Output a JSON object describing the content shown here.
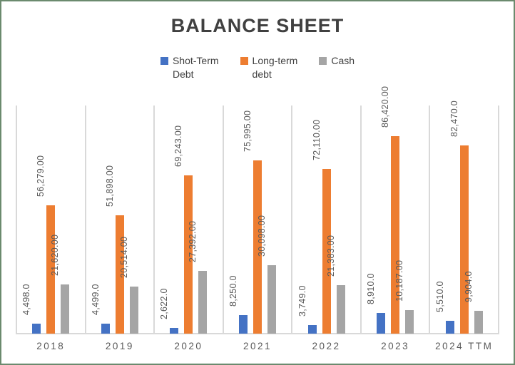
{
  "chart_data": {
    "type": "bar",
    "title": "BALANCE SHEET",
    "categories": [
      "2018",
      "2019",
      "2020",
      "2021",
      "2022",
      "2023",
      "2024 TTM"
    ],
    "series": [
      {
        "name": "Shot-Term Debt",
        "legend_lines": [
          "Shot-Term",
          "Debt"
        ],
        "color": "#4472C4",
        "values": [
          4498,
          4499,
          2622,
          8250,
          3749,
          8910,
          5510
        ],
        "data_labels": [
          "4,498.0",
          "4,499.0",
          "2,622.0",
          "8,250.0",
          "3,749.0",
          "8,910.0",
          "5,510.0"
        ]
      },
      {
        "name": "Long-term debt",
        "legend_lines": [
          "Long-term",
          "debt"
        ],
        "color": "#ED7D31",
        "values": [
          56279,
          51898,
          69243,
          75995,
          72110,
          86420,
          82470
        ],
        "data_labels": [
          "56,279.00",
          "51,898.00",
          "69,243.00",
          "75,995.00",
          "72,110.00",
          "86,420.00",
          "82,470.0"
        ]
      },
      {
        "name": "Cash",
        "legend_lines": [
          "Cash"
        ],
        "color": "#A5A5A5",
        "values": [
          21620,
          20514,
          27392,
          30098,
          21383,
          10187,
          9904
        ],
        "data_labels": [
          "21,620.00",
          "20,514.00",
          "27,392.00",
          "30,098.00",
          "21,383.00",
          "10,187.00",
          "9,904.0"
        ]
      }
    ],
    "ylim": [
      0,
      100000
    ],
    "xlabel": "",
    "ylabel": "",
    "y_axis_visible": false,
    "grid": "vertical-category-separators",
    "legend_position": "top",
    "data_label_rotation": 90
  },
  "colors": {
    "title": "#404040",
    "axis_label": "#595959",
    "data_label": "#595959",
    "legend_text": "#404040",
    "gridline": "#D9D9D9",
    "frame_border": "#6B8A6E",
    "background": "#FFFFFF"
  }
}
